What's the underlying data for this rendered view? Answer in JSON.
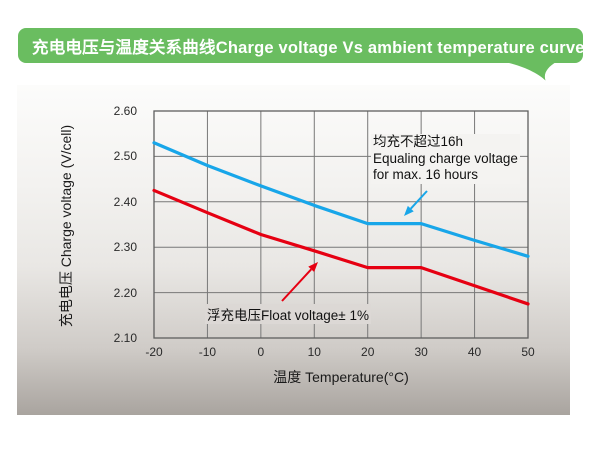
{
  "banner": {
    "title": "充电电压与温度关系曲线Charge voltage Vs ambient temperature curve",
    "background_color": "#6abd60",
    "text_color": "#ffffff"
  },
  "chart_data": {
    "type": "line",
    "title": "充电电压与温度关系曲线Charge voltage Vs ambient temperature curve",
    "xlabel": "温度 Temperature(°C)",
    "ylabel": "充电电压 Charge voltage (V/cell)",
    "xlim": [
      -20,
      50
    ],
    "ylim": [
      2.1,
      2.6
    ],
    "x_ticks": [
      -20,
      -10,
      0,
      10,
      20,
      30,
      40,
      50
    ],
    "y_ticks": [
      2.1,
      2.2,
      2.3,
      2.4,
      2.5,
      2.6
    ],
    "grid": true,
    "legend_position": "none",
    "grid_color": "#787878",
    "series": [
      {
        "name": "Equalizing charge voltage",
        "color": "#18a6e9",
        "points": [
          [
            -20,
            2.53
          ],
          [
            -10,
            2.48
          ],
          [
            0,
            2.435
          ],
          [
            10,
            2.392
          ],
          [
            20,
            2.352
          ],
          [
            30,
            2.352
          ],
          [
            40,
            2.315
          ],
          [
            50,
            2.28
          ]
        ]
      },
      {
        "name": "Float voltage",
        "color": "#e60012",
        "points": [
          [
            -20,
            2.425
          ],
          [
            -10,
            2.376
          ],
          [
            0,
            2.328
          ],
          [
            10,
            2.292
          ],
          [
            20,
            2.255
          ],
          [
            30,
            2.255
          ],
          [
            40,
            2.215
          ],
          [
            50,
            2.175
          ]
        ]
      }
    ],
    "annotations": [
      {
        "id": "equalize",
        "line1": "均充不超过16h",
        "line2": "Equaling charge voltage",
        "line3": "for max. 16 hours",
        "arrow_color": "#18a6e9",
        "target_series": "Equalizing charge voltage"
      },
      {
        "id": "float",
        "line1": "浮充电压Float voltage± 1%",
        "arrow_color": "#e60012",
        "target_series": "Float voltage"
      }
    ]
  }
}
